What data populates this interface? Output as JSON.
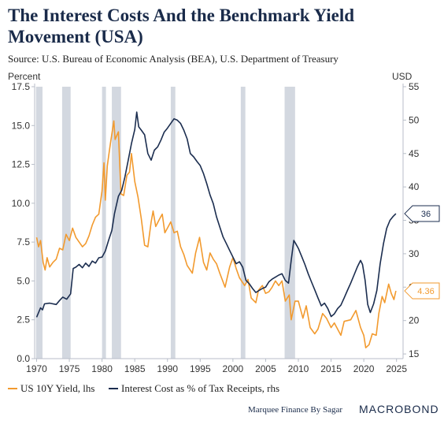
{
  "header": {
    "title": "The Interest Costs And the Benchmark Yield Movement (USA)",
    "source": "Source: U.S. Bureau of Economic Analysis (BEA), U.S. Department of Treasury"
  },
  "footer": {
    "note": "Marquee Finance By Sagar",
    "brand": "MACROBOND"
  },
  "colors": {
    "yield": "#f29a2e",
    "interest": "#1b2d4f",
    "recession": "#d3d8e0",
    "axis": "#b8bec8"
  },
  "chart_data": {
    "type": "line",
    "x_range": [
      1969.7,
      2026
    ],
    "x_ticks": [
      1970,
      1975,
      1980,
      1985,
      1990,
      1995,
      2000,
      2005,
      2010,
      2015,
      2020,
      2025
    ],
    "left_axis": {
      "unit": "Percent",
      "range": [
        0,
        17.5
      ],
      "ticks": [
        "0.0",
        "2.5",
        "5.0",
        "7.5",
        "10.0",
        "12.5",
        "15.0",
        "17.5"
      ]
    },
    "right_axis": {
      "unit": "USD",
      "range": [
        14.3,
        55
      ],
      "ticks": [
        "15",
        "20",
        "25",
        "30",
        "35",
        "40",
        "45",
        "50",
        "55"
      ]
    },
    "recessions": [
      [
        1969.9,
        1970.9
      ],
      [
        1973.9,
        1975.2
      ],
      [
        1980.0,
        1980.6
      ],
      [
        1981.5,
        1982.9
      ],
      [
        1990.5,
        1991.2
      ],
      [
        2001.2,
        2001.9
      ],
      [
        2007.9,
        2009.5
      ]
    ],
    "series": [
      {
        "name": "US 10Y Yield, lhs",
        "axis": "left",
        "points": [
          [
            1970.0,
            7.8
          ],
          [
            1970.3,
            7.2
          ],
          [
            1970.6,
            7.6
          ],
          [
            1971.0,
            6.2
          ],
          [
            1971.3,
            5.7
          ],
          [
            1971.6,
            6.5
          ],
          [
            1972.0,
            5.9
          ],
          [
            1972.5,
            6.2
          ],
          [
            1973.0,
            6.4
          ],
          [
            1973.5,
            7.1
          ],
          [
            1974.0,
            7.0
          ],
          [
            1974.5,
            8.0
          ],
          [
            1975.0,
            7.6
          ],
          [
            1975.5,
            8.4
          ],
          [
            1976.0,
            7.8
          ],
          [
            1976.5,
            7.5
          ],
          [
            1977.0,
            7.2
          ],
          [
            1977.5,
            7.4
          ],
          [
            1978.0,
            7.9
          ],
          [
            1978.5,
            8.6
          ],
          [
            1979.0,
            9.1
          ],
          [
            1979.5,
            9.3
          ],
          [
            1980.0,
            10.8
          ],
          [
            1980.3,
            12.6
          ],
          [
            1980.5,
            10.2
          ],
          [
            1980.8,
            12.4
          ],
          [
            1981.0,
            13.0
          ],
          [
            1981.3,
            13.9
          ],
          [
            1981.8,
            15.3
          ],
          [
            1982.0,
            14.1
          ],
          [
            1982.5,
            14.6
          ],
          [
            1982.9,
            10.6
          ],
          [
            1983.3,
            10.5
          ],
          [
            1983.8,
            11.8
          ],
          [
            1984.2,
            12.0
          ],
          [
            1984.5,
            13.2
          ],
          [
            1985.0,
            11.4
          ],
          [
            1985.5,
            10.4
          ],
          [
            1986.0,
            9.0
          ],
          [
            1986.5,
            7.3
          ],
          [
            1987.0,
            7.2
          ],
          [
            1987.5,
            8.8
          ],
          [
            1987.8,
            9.5
          ],
          [
            1988.2,
            8.5
          ],
          [
            1988.8,
            9.0
          ],
          [
            1989.2,
            9.3
          ],
          [
            1989.6,
            8.1
          ],
          [
            1990.0,
            8.4
          ],
          [
            1990.5,
            8.8
          ],
          [
            1991.0,
            8.1
          ],
          [
            1991.5,
            8.2
          ],
          [
            1992.0,
            7.2
          ],
          [
            1992.5,
            6.7
          ],
          [
            1993.0,
            6.0
          ],
          [
            1993.8,
            5.5
          ],
          [
            1994.3,
            6.8
          ],
          [
            1994.9,
            7.8
          ],
          [
            1995.5,
            6.2
          ],
          [
            1996.0,
            5.7
          ],
          [
            1996.5,
            6.8
          ],
          [
            1997.0,
            6.4
          ],
          [
            1997.5,
            6.1
          ],
          [
            1998.0,
            5.5
          ],
          [
            1998.8,
            4.6
          ],
          [
            1999.5,
            5.9
          ],
          [
            2000.0,
            6.5
          ],
          [
            2000.5,
            5.8
          ],
          [
            2001.0,
            5.2
          ],
          [
            2001.8,
            4.7
          ],
          [
            2002.3,
            5.1
          ],
          [
            2002.8,
            3.9
          ],
          [
            2003.5,
            3.6
          ],
          [
            2003.9,
            4.4
          ],
          [
            2004.5,
            4.7
          ],
          [
            2005.0,
            4.2
          ],
          [
            2005.5,
            4.3
          ],
          [
            2006.0,
            4.6
          ],
          [
            2006.5,
            5.0
          ],
          [
            2007.0,
            4.7
          ],
          [
            2007.5,
            5.0
          ],
          [
            2008.0,
            3.7
          ],
          [
            2008.6,
            4.1
          ],
          [
            2008.9,
            2.5
          ],
          [
            2009.5,
            3.7
          ],
          [
            2010.0,
            3.7
          ],
          [
            2010.7,
            2.6
          ],
          [
            2011.2,
            3.4
          ],
          [
            2011.8,
            2.0
          ],
          [
            2012.5,
            1.6
          ],
          [
            2013.0,
            1.9
          ],
          [
            2013.7,
            2.9
          ],
          [
            2014.3,
            2.6
          ],
          [
            2015.0,
            2.0
          ],
          [
            2015.5,
            2.3
          ],
          [
            2016.5,
            1.5
          ],
          [
            2017.0,
            2.4
          ],
          [
            2018.0,
            2.5
          ],
          [
            2018.8,
            3.1
          ],
          [
            2019.5,
            2.0
          ],
          [
            2020.0,
            1.5
          ],
          [
            2020.3,
            0.7
          ],
          [
            2020.8,
            0.9
          ],
          [
            2021.3,
            1.6
          ],
          [
            2021.9,
            1.5
          ],
          [
            2022.3,
            2.9
          ],
          [
            2022.8,
            4.0
          ],
          [
            2023.2,
            3.6
          ],
          [
            2023.8,
            4.8
          ],
          [
            2024.2,
            4.2
          ],
          [
            2024.6,
            3.8
          ],
          [
            2024.9,
            4.36
          ]
        ]
      },
      {
        "name": "Interest Cost as % of Tax Receipts, rhs",
        "axis": "right",
        "points": [
          [
            1970.0,
            20.5
          ],
          [
            1970.3,
            21.2
          ],
          [
            1970.6,
            21.9
          ],
          [
            1970.9,
            21.6
          ],
          [
            1971.2,
            22.5
          ],
          [
            1972.0,
            22.6
          ],
          [
            1973.0,
            22.4
          ],
          [
            1973.5,
            23.0
          ],
          [
            1974.0,
            23.5
          ],
          [
            1974.6,
            23.2
          ],
          [
            1975.2,
            24.0
          ],
          [
            1975.6,
            27.8
          ],
          [
            1976.0,
            28.0
          ],
          [
            1976.5,
            28.4
          ],
          [
            1977.0,
            27.9
          ],
          [
            1977.5,
            28.6
          ],
          [
            1978.0,
            28.1
          ],
          [
            1978.5,
            28.9
          ],
          [
            1979.0,
            28.6
          ],
          [
            1979.5,
            29.4
          ],
          [
            1980.0,
            29.5
          ],
          [
            1980.5,
            30.4
          ],
          [
            1981.0,
            32.0
          ],
          [
            1981.5,
            33.5
          ],
          [
            1981.9,
            36.0
          ],
          [
            1982.5,
            38.6
          ],
          [
            1983.0,
            39.5
          ],
          [
            1983.5,
            41.5
          ],
          [
            1984.0,
            44.0
          ],
          [
            1984.5,
            46.5
          ],
          [
            1985.0,
            48.6
          ],
          [
            1985.3,
            51.2
          ],
          [
            1985.6,
            49.0
          ],
          [
            1986.0,
            48.5
          ],
          [
            1986.5,
            47.8
          ],
          [
            1987.0,
            45.0
          ],
          [
            1987.5,
            44.0
          ],
          [
            1988.0,
            45.5
          ],
          [
            1988.5,
            46.0
          ],
          [
            1989.0,
            47.0
          ],
          [
            1989.5,
            48.2
          ],
          [
            1990.0,
            48.8
          ],
          [
            1990.5,
            49.5
          ],
          [
            1991.0,
            50.2
          ],
          [
            1991.5,
            50.0
          ],
          [
            1992.0,
            49.5
          ],
          [
            1992.5,
            48.5
          ],
          [
            1993.0,
            47.2
          ],
          [
            1993.5,
            45.0
          ],
          [
            1994.0,
            44.5
          ],
          [
            1994.5,
            43.8
          ],
          [
            1995.0,
            43.2
          ],
          [
            1995.5,
            42.0
          ],
          [
            1996.0,
            40.5
          ],
          [
            1996.5,
            38.8
          ],
          [
            1997.0,
            37.5
          ],
          [
            1997.5,
            35.5
          ],
          [
            1998.0,
            34.0
          ],
          [
            1998.5,
            32.5
          ],
          [
            1999.0,
            31.5
          ],
          [
            1999.5,
            30.5
          ],
          [
            2000.0,
            29.5
          ],
          [
            2000.5,
            28.5
          ],
          [
            2001.0,
            28.8
          ],
          [
            2001.5,
            28.0
          ],
          [
            2002.0,
            26.0
          ],
          [
            2002.5,
            25.5
          ],
          [
            2003.0,
            24.8
          ],
          [
            2003.5,
            24.2
          ],
          [
            2004.0,
            24.5
          ],
          [
            2004.5,
            24.8
          ],
          [
            2005.0,
            25.0
          ],
          [
            2005.5,
            25.8
          ],
          [
            2006.0,
            26.2
          ],
          [
            2006.5,
            26.5
          ],
          [
            2007.0,
            26.8
          ],
          [
            2007.5,
            27.0
          ],
          [
            2008.0,
            26.0
          ],
          [
            2008.5,
            25.6
          ],
          [
            2008.9,
            29.0
          ],
          [
            2009.3,
            32.0
          ],
          [
            2009.6,
            31.5
          ],
          [
            2010.0,
            30.8
          ],
          [
            2010.5,
            29.6
          ],
          [
            2011.0,
            28.4
          ],
          [
            2011.5,
            27.0
          ],
          [
            2012.0,
            25.8
          ],
          [
            2012.5,
            24.6
          ],
          [
            2013.0,
            23.4
          ],
          [
            2013.5,
            22.2
          ],
          [
            2014.0,
            22.6
          ],
          [
            2014.5,
            21.8
          ],
          [
            2015.0,
            20.6
          ],
          [
            2015.5,
            21.0
          ],
          [
            2016.0,
            21.8
          ],
          [
            2016.5,
            22.3
          ],
          [
            2017.0,
            23.4
          ],
          [
            2017.5,
            24.5
          ],
          [
            2018.0,
            25.6
          ],
          [
            2018.5,
            26.8
          ],
          [
            2019.0,
            28.0
          ],
          [
            2019.5,
            29.0
          ],
          [
            2019.8,
            28.4
          ],
          [
            2020.2,
            26.0
          ],
          [
            2020.6,
            22.4
          ],
          [
            2021.0,
            21.2
          ],
          [
            2021.5,
            22.5
          ],
          [
            2022.0,
            24.5
          ],
          [
            2022.5,
            28.5
          ],
          [
            2023.0,
            31.5
          ],
          [
            2023.5,
            33.8
          ],
          [
            2024.0,
            35.0
          ],
          [
            2024.5,
            35.6
          ],
          [
            2024.9,
            36.0
          ]
        ]
      }
    ],
    "end_labels": {
      "yield": "4.36",
      "interest": "36"
    }
  }
}
